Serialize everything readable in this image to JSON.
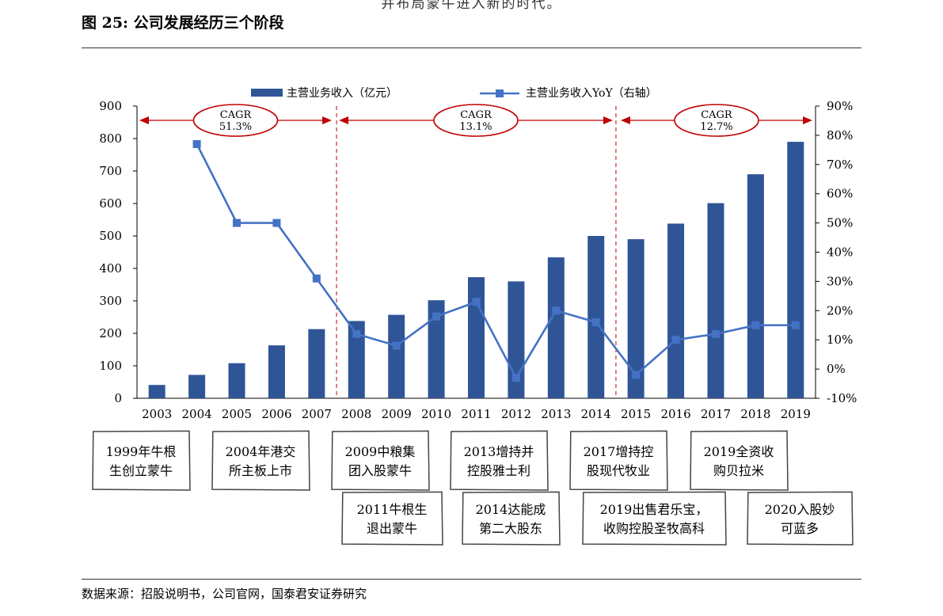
{
  "top_fragment": "并布局蒙牛进入新的时代。",
  "figure_title": "图 25: 公司发展经历三个阶段",
  "source": "数据来源：招股说明书，公司官网，国泰君安证券研究",
  "colors": {
    "bar": "#2f5597",
    "line": "#4472c4",
    "arrow": "#c00000"
  },
  "chart_data": {
    "type": "bar",
    "categories": [
      "2003",
      "2004",
      "2005",
      "2006",
      "2007",
      "2008",
      "2009",
      "2010",
      "2011",
      "2012",
      "2013",
      "2014",
      "2015",
      "2016",
      "2017",
      "2018",
      "2019"
    ],
    "series": [
      {
        "name": "主营业务收入（亿元）",
        "type": "bar",
        "axis": "left",
        "values": [
          41,
          72,
          108,
          163,
          213,
          238,
          257,
          302,
          373,
          360,
          434,
          500,
          490,
          538,
          601,
          690,
          790
        ]
      },
      {
        "name": "主营业务收入YoY（右轴）",
        "type": "line",
        "axis": "right",
        "values": [
          null,
          77,
          50,
          50,
          31,
          12,
          8,
          18,
          23,
          -3,
          20,
          16,
          -2,
          10,
          12,
          15,
          15
        ]
      }
    ],
    "left_axis": {
      "min": 0,
      "max": 900,
      "ticks": [
        "0",
        "100",
        "200",
        "300",
        "400",
        "500",
        "600",
        "700",
        "800",
        "900"
      ]
    },
    "right_axis": {
      "min": -10,
      "max": 90,
      "ticks": [
        "-10%",
        "0%",
        "10%",
        "20%",
        "30%",
        "40%",
        "50%",
        "60%",
        "70%",
        "80%",
        "90%"
      ]
    },
    "legend_position": "top-center",
    "grid": false,
    "phases": [
      {
        "label": "CAGR",
        "value": "51.3%"
      },
      {
        "label": "CAGR",
        "value": "13.1%"
      },
      {
        "label": "CAGR",
        "value": "12.7%"
      }
    ],
    "annotations_top": [
      [
        "1999年牛根",
        "生创立蒙牛"
      ],
      [
        "2004年港交",
        "所主板上市"
      ],
      [
        "2009中粮集",
        "团入股蒙牛"
      ],
      [
        "2013增持并",
        "控股雅士利"
      ],
      [
        "2017增持控",
        "股现代牧业"
      ],
      [
        "2019全资收",
        "购贝拉米"
      ]
    ],
    "annotations_bottom": [
      [
        "2011牛根生",
        "退出蒙牛"
      ],
      [
        "2014达能成",
        "第二大股东"
      ],
      [
        "2019出售君乐宝，",
        "收购控股圣牧高科"
      ],
      [
        "2020入股妙",
        "可蓝多"
      ]
    ]
  }
}
